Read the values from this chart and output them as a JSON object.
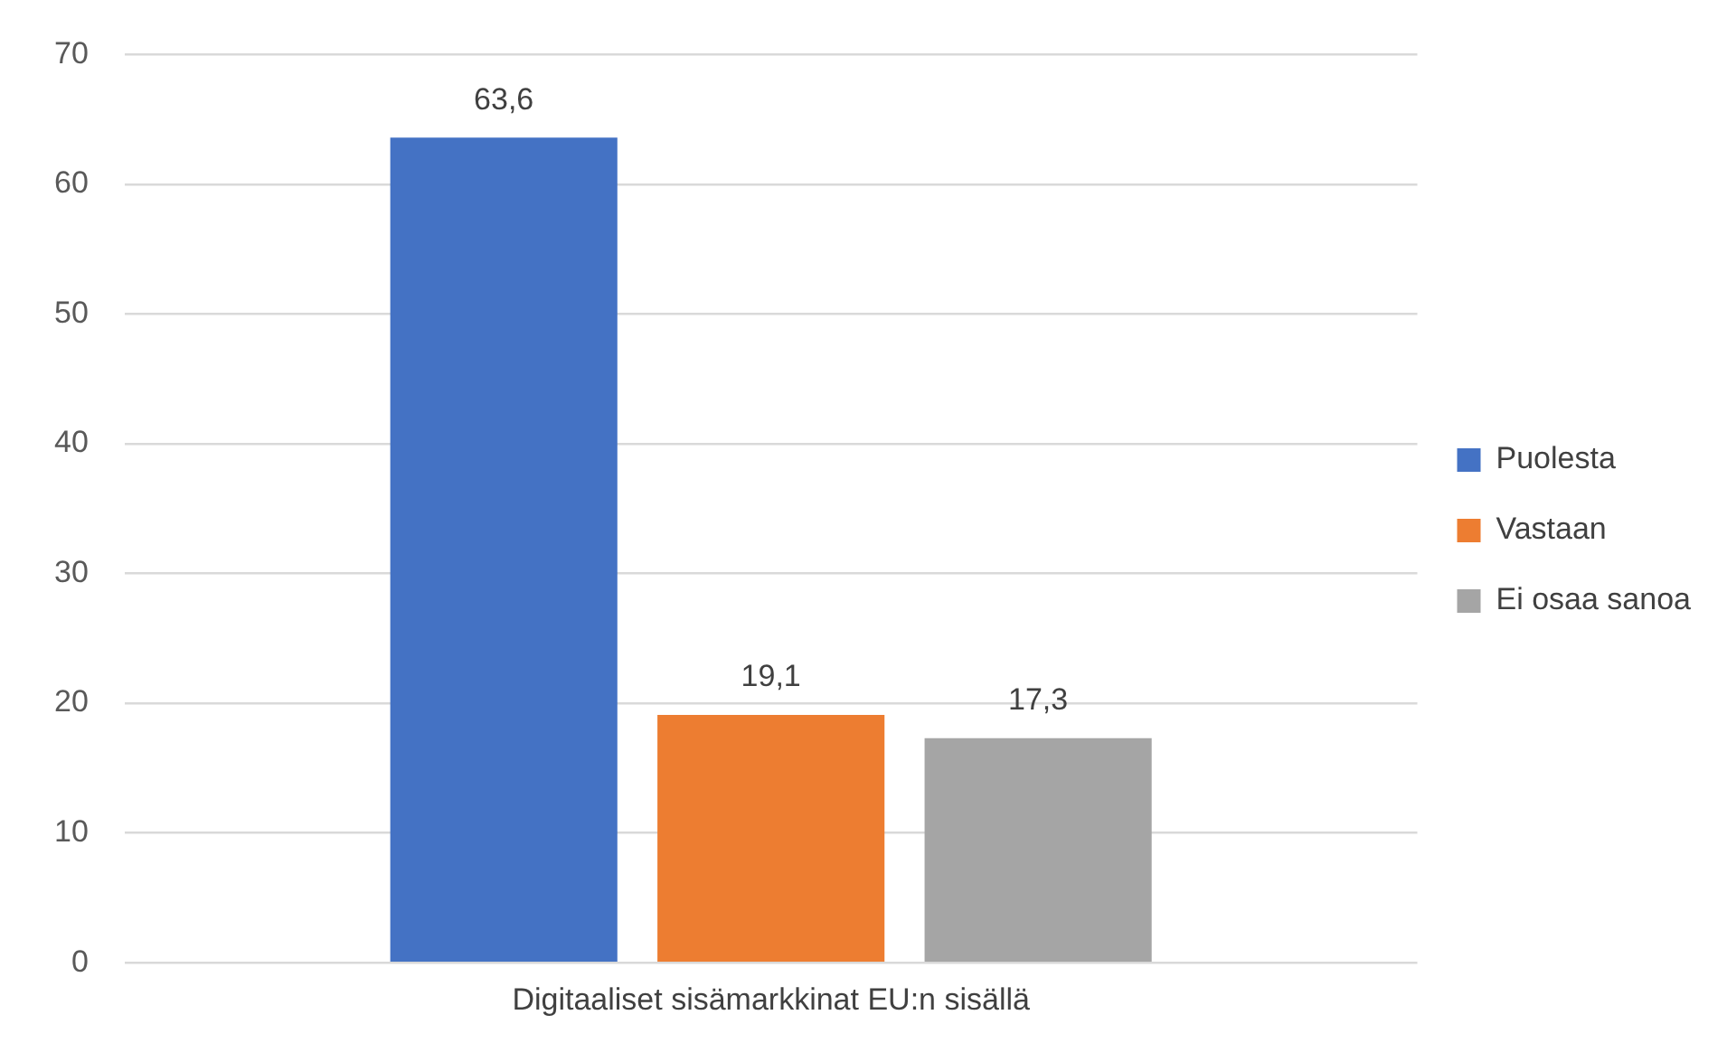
{
  "chart_data": {
    "type": "bar",
    "categories": [
      "Digitaaliset sisämarkkinat EU:n sisällä"
    ],
    "series": [
      {
        "name": "Puolesta",
        "color": "#4472c4",
        "values": [
          63.6
        ],
        "value_labels": [
          "63,6"
        ]
      },
      {
        "name": "Vastaan",
        "color": "#ed7d31",
        "values": [
          19.1
        ],
        "value_labels": [
          "19,1"
        ]
      },
      {
        "name": "Ei osaa sanoa",
        "color": "#a5a5a5",
        "values": [
          17.3
        ],
        "value_labels": [
          "17,3"
        ]
      }
    ],
    "ylim": [
      0,
      70
    ],
    "yticks": [
      0,
      10,
      20,
      30,
      40,
      50,
      60,
      70
    ],
    "grid": "y",
    "legend": "right"
  }
}
